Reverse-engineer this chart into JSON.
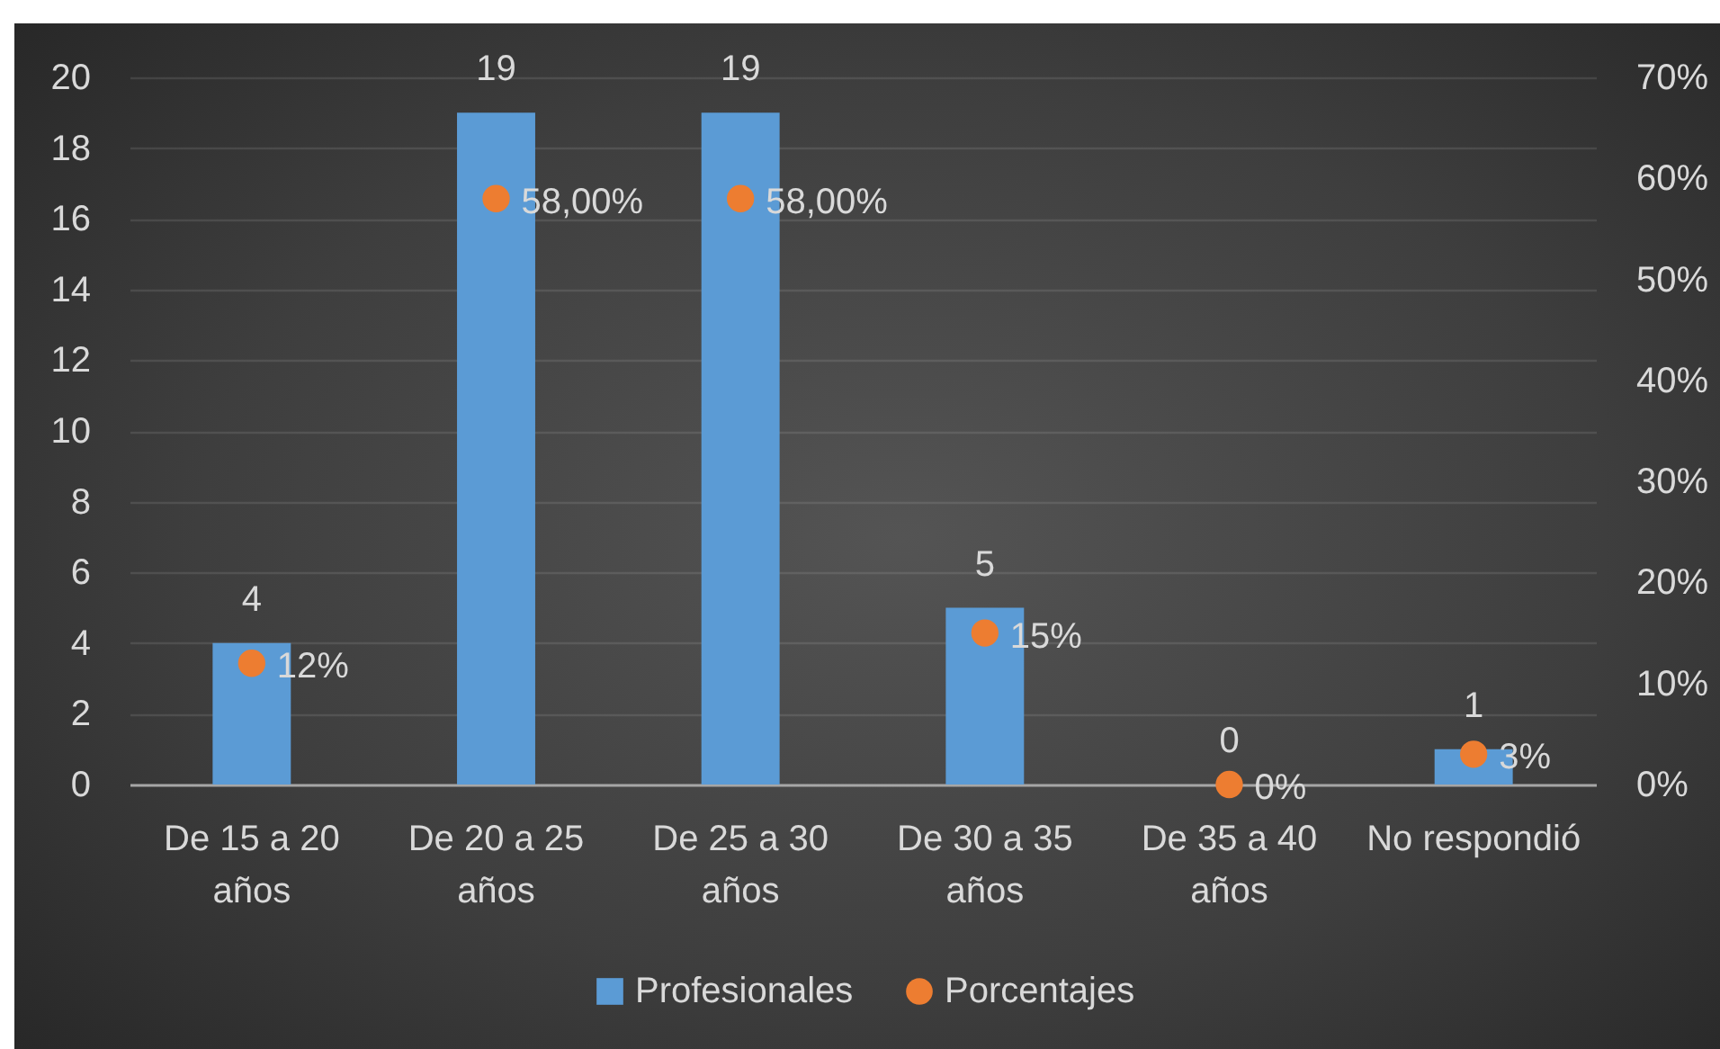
{
  "chart_data": {
    "type": "bar",
    "categories": [
      "De 15 a 20 años",
      "De 20 a 25 años",
      "De 25 a 30 años",
      "De 30 a 35 años",
      "De 35 a 40 años",
      "No respondió"
    ],
    "series": [
      {
        "name": "Profesionales",
        "type": "bar",
        "color": "#5b9bd5",
        "values": [
          4,
          19,
          19,
          5,
          0,
          1
        ],
        "value_labels": [
          "4",
          "19",
          "19",
          "5",
          "0",
          "1"
        ]
      },
      {
        "name": "Porcentajes",
        "type": "scatter",
        "axis": "y2",
        "color": "#ed7d31",
        "values": [
          12,
          58,
          58,
          15,
          0,
          3
        ],
        "value_labels": [
          "12%",
          "58,00%",
          "58,00%",
          "15%",
          "0%",
          "3%"
        ]
      }
    ],
    "ylim": [
      0,
      20
    ],
    "yticks": [
      0,
      2,
      4,
      6,
      8,
      10,
      12,
      14,
      16,
      18,
      20
    ],
    "y2lim": [
      0,
      70
    ],
    "y2ticks": [
      {
        "value": 0,
        "label": "0%"
      },
      {
        "value": 10,
        "label": "10%"
      },
      {
        "value": 20,
        "label": "20%"
      },
      {
        "value": 30,
        "label": "30%"
      },
      {
        "value": 40,
        "label": "40%"
      },
      {
        "value": 50,
        "label": "50%"
      },
      {
        "value": 60,
        "label": "60%"
      },
      {
        "value": 70,
        "label": "70%"
      }
    ],
    "grid": "y",
    "legend": "bottom",
    "marker": "circle"
  }
}
